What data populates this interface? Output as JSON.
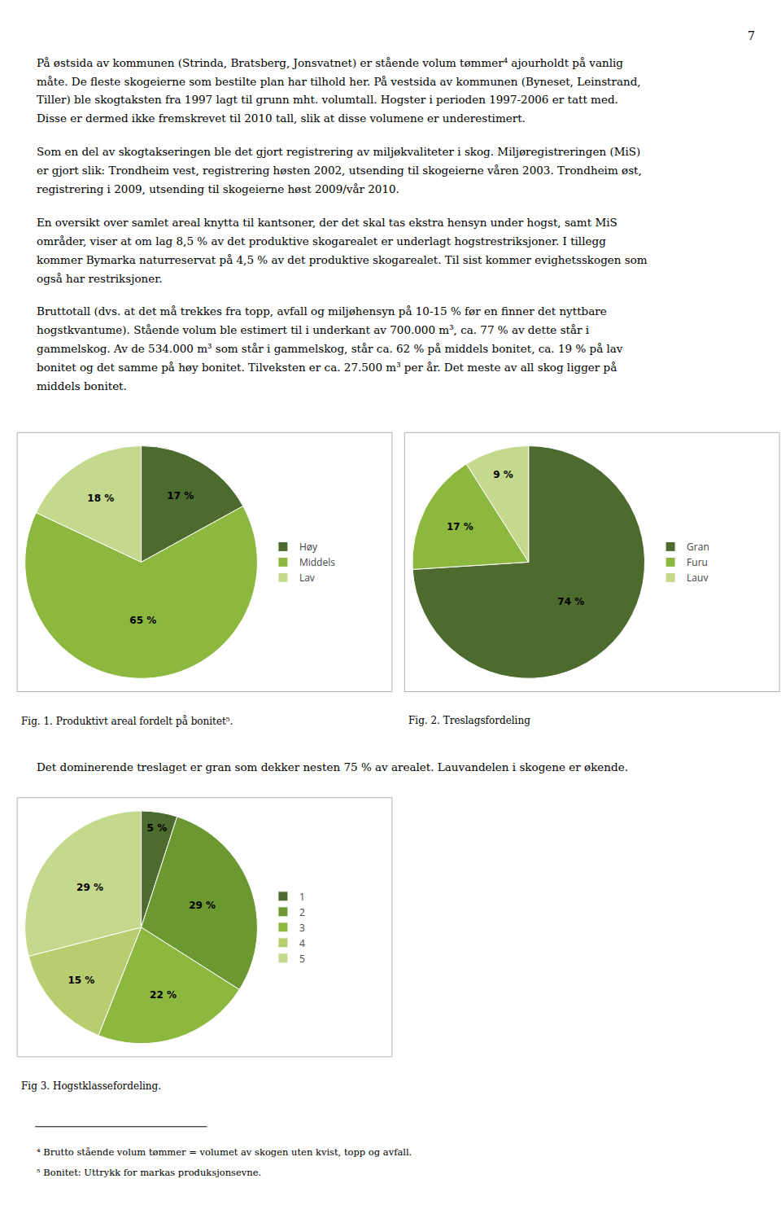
{
  "chart_data": [
    {
      "type": "pie",
      "title": "Fig. 1. Produktivt areal fordelt på bonitet⁵.",
      "categories": [
        "Høy",
        "Middels",
        "Lav"
      ],
      "values": [
        17,
        65,
        18
      ],
      "value_labels": [
        "17 %",
        "65 %",
        "18 %"
      ],
      "colors": [
        "#4d6b2e",
        "#8cb840",
        "#c5d98e"
      ],
      "data_labels": true,
      "legend": "right"
    },
    {
      "type": "pie",
      "title": "Fig. 2. Treslagsfordeling",
      "categories": [
        "Gran",
        "Furu",
        "Lauv"
      ],
      "values": [
        74,
        17,
        9
      ],
      "value_labels": [
        "74 %",
        "17 %",
        "9 %"
      ],
      "colors": [
        "#4d6b2e",
        "#8cb840",
        "#c5d98e"
      ],
      "data_labels": true,
      "legend": "right"
    },
    {
      "type": "pie",
      "title": "Fig 3. Hogstklassefordeling.",
      "categories": [
        "1",
        "2",
        "3",
        "4",
        "5"
      ],
      "values": [
        5,
        29,
        22,
        15,
        29
      ],
      "value_labels": [
        "5 %",
        "29 %",
        "22 %",
        "15 %",
        "29 %"
      ],
      "colors": [
        "#4d6b2e",
        "#6b9830",
        "#8cb840",
        "#b8cc70",
        "#c5d98e"
      ],
      "data_labels": true,
      "legend": "right"
    }
  ],
  "annotations": [
    "7",
    "På østsida av kommunen (Strinda, Bratsberg, Jonsvatnet) er stående volum tømmer⁴ ajourholdt på vanlig\nmåte. De fleste skogeierne som bestilte plan har tilhold her. På vestsida av kommunen (Byneset, Leinstrand,\nTiller) ble skogtaksten fra 1997 lagt til grunn mht. volumtall. Hogster i perioden 1997-2006 er tatt med.\nDisse er dermed ikke fremskrevet til 2010 tall, slik at disse volumene er underestimert.",
    "Som en del av skogtakseringen ble det gjort registrering av miljøkvaliteter i skog. Miljøregistreringen (MiS)\ner gjort slik: Trondheim vest, registrering høsten 2002, utsending til skogeierne våren 2003. Trondheim øst,\nregistrering i 2009, utsending til skogeierne høst 2009/vår 2010.",
    "En oversikt over samlet areal knytta til kantsoner, der det skal tas ekstra hensyn under hogst, samt MiS\nområder, viser at om lag 8,5 % av det produktive skogarealet er underlagt hogstrestriksjoner. I tillegg\nkommer Bymarka naturreservat på 4,5 % av det produktive skogarealet. Til sist kommer evighetsskogen som\nogså har restriksjoner.",
    "Bruttotall (dvs. at det må trekkes fra topp, avfall og miljøhensyn på 10-15 % før en finner det nyttbare\nhogstkvantume). Stående volum ble estimert til i underkant av 700.000 m³, ca. 77 % av dette står i\ngammelskog. Av de 534.000 m³ som står i gammelskog, står ca. 62 % på middels bonitet, ca. 19 % på lav\nbonitet og det samme på høy bonitet. Tilveksten er ca. 27.500 m³ per år. Det meste av all skog ligger på\nmiddels bonitet.",
    "Det dominerende treslaget er gran som dekker nesten 75 % av arealet. Lauvandelen i skogene er økende.",
    "⁴ Brutto stående volum tømmer = volumet av skogen uten kvist, topp og avfall.",
    "⁵ Bonitet: Uttrykk for markas produksjonsevne."
  ]
}
